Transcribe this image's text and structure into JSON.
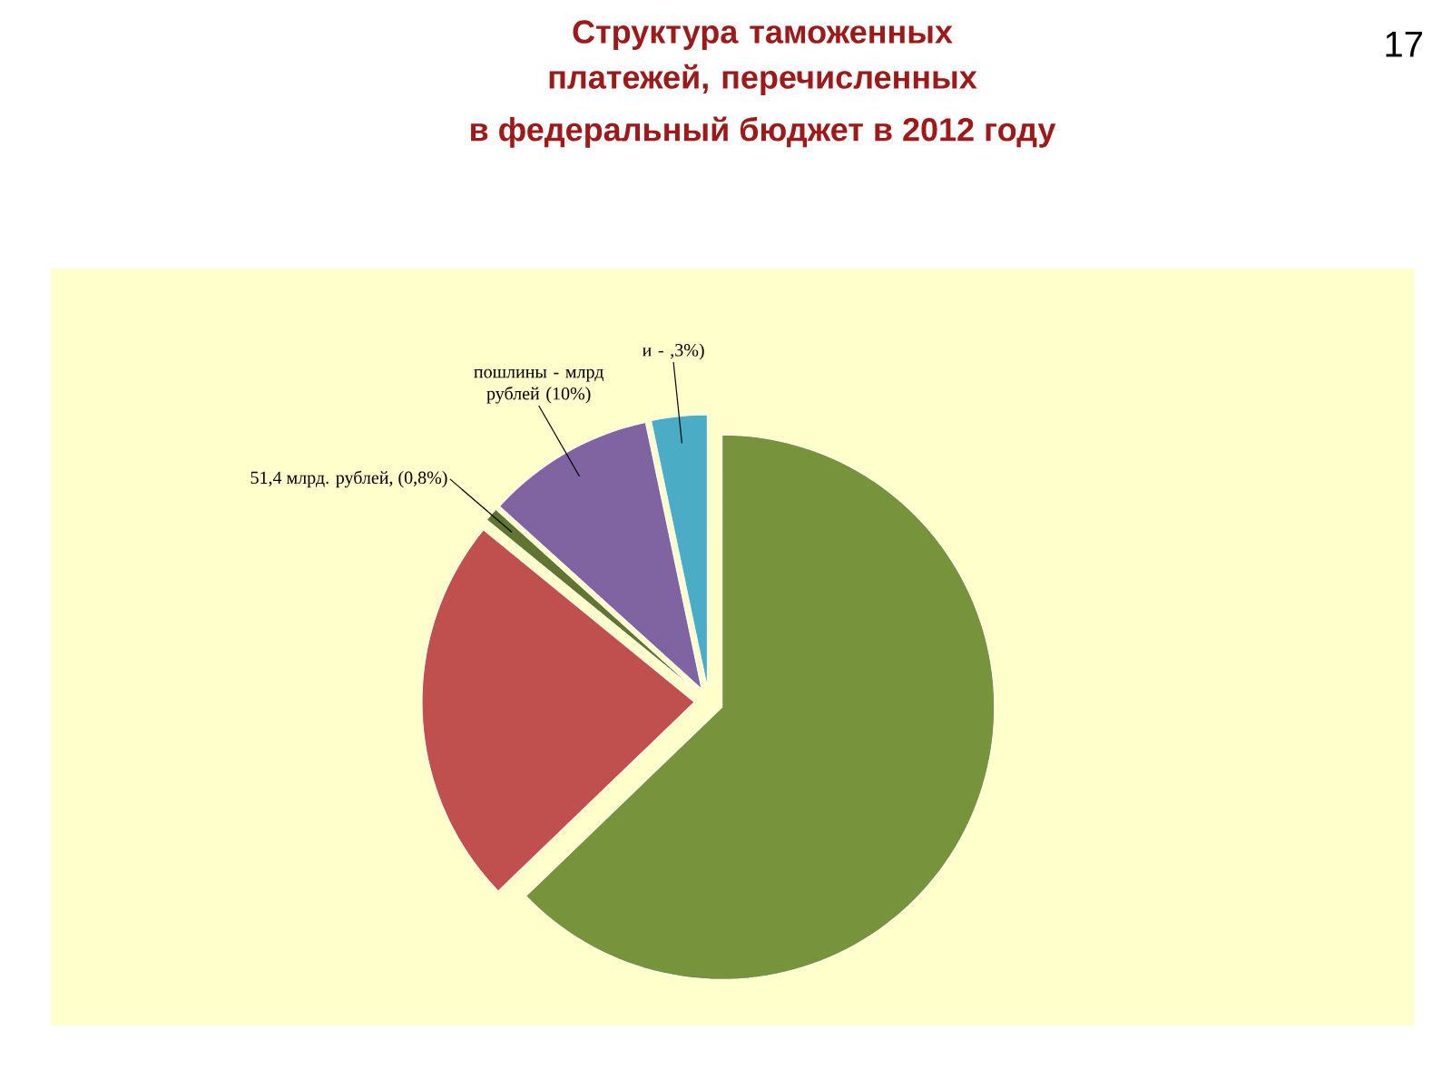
{
  "chart_data": {
    "type": "pie",
    "title": "Структура таможенных платежей, перечисленных",
    "subtitle": "в федеральный бюджет в 2012 году",
    "categories": [
      null,
      null,
      null,
      null,
      null
    ],
    "values": [
      62.8,
      23.1,
      0.8,
      10,
      3.3
    ],
    "colors": [
      "#77933c",
      "#c0504d",
      "#5f7530",
      "#8064a2",
      "#4bacc6"
    ],
    "value_labels": [
      null,
      null,
      "51,4 млрд. рублей, (0,8%)",
      "пошлины - млрд рублей (10%)",
      "и - ,3%)"
    ],
    "annotations": [
      "17"
    ]
  }
}
